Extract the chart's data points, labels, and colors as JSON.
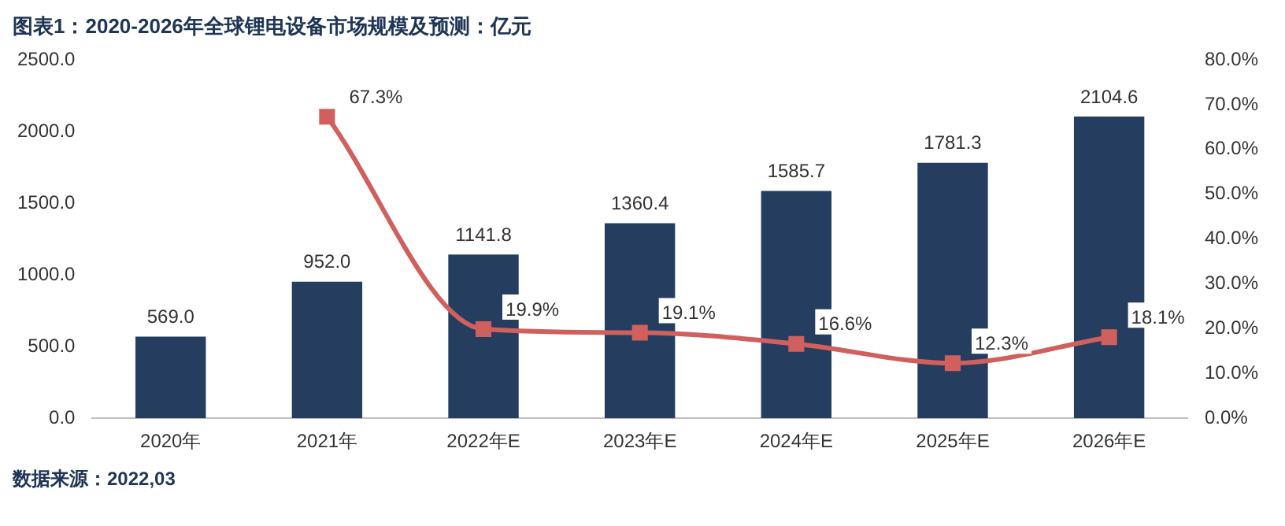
{
  "chart_data": {
    "type": "bar",
    "title": "图表1：2020-2026年全球锂电设备市场规模及预测：亿元",
    "categories": [
      "2020年",
      "2021年",
      "2022年E",
      "2023年E",
      "2024年E",
      "2025年E",
      "2026年E"
    ],
    "series": [
      {
        "color": "#253d5f",
        "values": [
          569.0,
          952.0,
          1141.8,
          1360.4,
          1585.7,
          1781.3,
          2104.6
        ],
        "value_labels": [
          "569.0",
          "952.0",
          "1141.8",
          "1360.4",
          "1585.7",
          "1781.3",
          "2104.6"
        ]
      },
      {
        "type": "line",
        "axis": "y2",
        "color": "#d0605e",
        "marker": "square",
        "values": [
          null,
          67.3,
          19.9,
          19.1,
          16.6,
          12.3,
          18.1
        ],
        "value_labels": [
          null,
          "67.3%",
          "19.9%",
          "19.1%",
          "16.6%",
          "12.3%",
          "18.1%"
        ]
      }
    ],
    "ylim": [
      0,
      2500
    ],
    "yticks": [
      {
        "value": 0,
        "label": "0.0"
      },
      {
        "value": 500,
        "label": "500.0"
      },
      {
        "value": 1000,
        "label": "1000.0"
      },
      {
        "value": 1500,
        "label": "1500.0"
      },
      {
        "value": 2000,
        "label": "2000.0"
      },
      {
        "value": 2500,
        "label": "2500.0"
      }
    ],
    "y2lim": [
      0,
      80
    ],
    "y2ticks": [
      {
        "value": 0,
        "label": "0.0%"
      },
      {
        "value": 10,
        "label": "10.0%"
      },
      {
        "value": 20,
        "label": "20.0%"
      },
      {
        "value": 30,
        "label": "30.0%"
      },
      {
        "value": 40,
        "label": "40.0%"
      },
      {
        "value": 50,
        "label": "50.0%"
      },
      {
        "value": 60,
        "label": "60.0%"
      },
      {
        "value": 70,
        "label": "70.0%"
      },
      {
        "value": 80,
        "label": "80.0%"
      }
    ],
    "grid": false,
    "legend": false,
    "annotations": [
      "数据来源：2022,03"
    ]
  }
}
